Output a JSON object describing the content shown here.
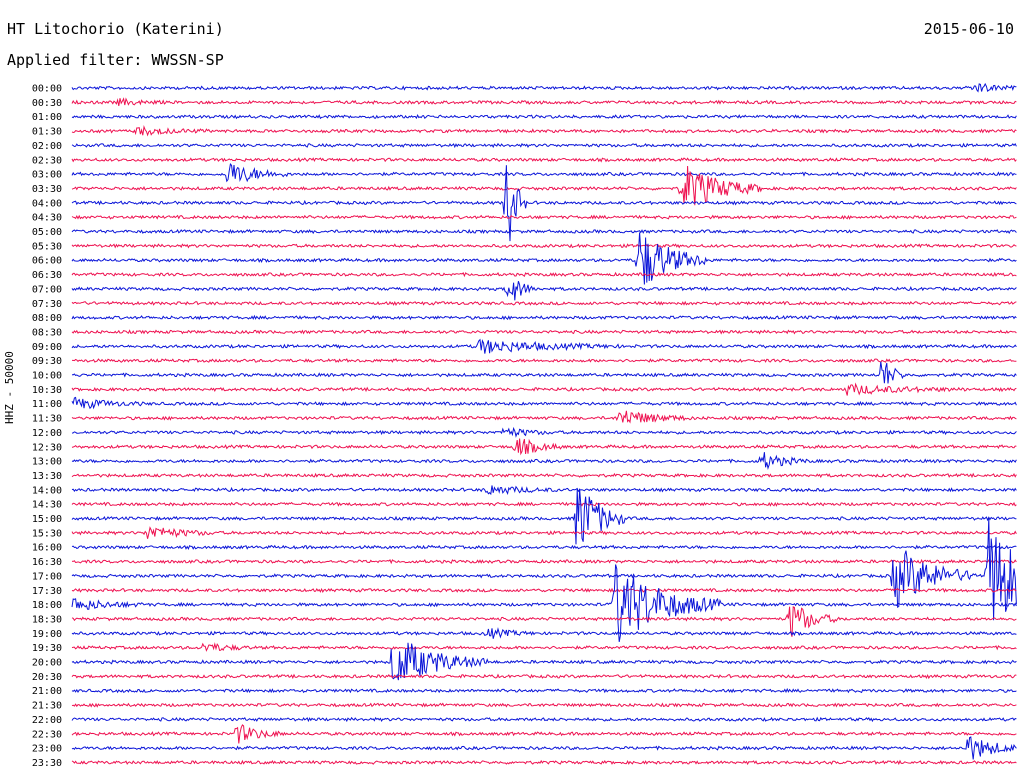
{
  "header": {
    "station": "HT Litochorio (Katerini)",
    "date": "2015-06-10",
    "filter": "Applied filter: WWSSN-SP"
  },
  "chart_data": {
    "type": "line",
    "subtype": "helicorder",
    "ylabel": "HHZ - 50000",
    "colors": [
      "#0a14d8",
      "#ee1150"
    ],
    "rows": [
      "00:00",
      "00:30",
      "01:00",
      "01:30",
      "02:00",
      "02:30",
      "03:00",
      "03:30",
      "04:00",
      "04:30",
      "05:00",
      "05:30",
      "06:00",
      "06:30",
      "07:00",
      "07:30",
      "08:00",
      "08:30",
      "09:00",
      "09:30",
      "10:00",
      "10:30",
      "11:00",
      "11:30",
      "12:00",
      "12:30",
      "13:00",
      "13:30",
      "14:00",
      "14:30",
      "15:00",
      "15:30",
      "16:00",
      "16:30",
      "17:00",
      "17:30",
      "18:00",
      "18:30",
      "19:00",
      "19:30",
      "20:00",
      "20:30",
      "21:00",
      "21:30",
      "22:00",
      "22:30",
      "23:00",
      "23:30"
    ],
    "events": [
      {
        "row": 0,
        "pos": 0.955,
        "amp": 5,
        "dur": 0.02
      },
      {
        "row": 1,
        "pos": 0.05,
        "amp": 3,
        "dur": 0.02
      },
      {
        "row": 3,
        "pos": 0.07,
        "amp": 4,
        "dur": 0.03
      },
      {
        "row": 6,
        "pos": 0.165,
        "amp": 13,
        "dur": 0.025
      },
      {
        "row": 7,
        "pos": 0.646,
        "amp": 26,
        "dur": 0.035
      },
      {
        "row": 8,
        "pos": 0.46,
        "amp": 58,
        "dur": 0.008
      },
      {
        "row": 12,
        "pos": 0.6,
        "amp": 34,
        "dur": 0.03
      },
      {
        "row": 14,
        "pos": 0.462,
        "amp": 18,
        "dur": 0.012
      },
      {
        "row": 18,
        "pos": 0.43,
        "amp": 7,
        "dur": 0.06
      },
      {
        "row": 20,
        "pos": 0.857,
        "amp": 20,
        "dur": 0.01
      },
      {
        "row": 21,
        "pos": 0.82,
        "amp": 5,
        "dur": 0.05
      },
      {
        "row": 22,
        "pos": 0.0,
        "amp": 6,
        "dur": 0.03
      },
      {
        "row": 23,
        "pos": 0.58,
        "amp": 9,
        "dur": 0.03
      },
      {
        "row": 24,
        "pos": 0.458,
        "amp": 5,
        "dur": 0.02
      },
      {
        "row": 25,
        "pos": 0.47,
        "amp": 10,
        "dur": 0.02
      },
      {
        "row": 26,
        "pos": 0.73,
        "amp": 9,
        "dur": 0.02
      },
      {
        "row": 28,
        "pos": 0.44,
        "amp": 5,
        "dur": 0.03
      },
      {
        "row": 30,
        "pos": 0.535,
        "amp": 44,
        "dur": 0.02
      },
      {
        "row": 31,
        "pos": 0.08,
        "amp": 7,
        "dur": 0.03
      },
      {
        "row": 34,
        "pos": 0.87,
        "amp": 34,
        "dur": 0.035
      },
      {
        "row": 34,
        "pos": 0.97,
        "amp": 58,
        "dur": 0.04
      },
      {
        "row": 36,
        "pos": 0.575,
        "amp": 44,
        "dur": 0.045
      },
      {
        "row": 36,
        "pos": 0.0,
        "amp": 7,
        "dur": 0.03
      },
      {
        "row": 37,
        "pos": 0.76,
        "amp": 20,
        "dur": 0.02
      },
      {
        "row": 38,
        "pos": 0.44,
        "amp": 5,
        "dur": 0.02
      },
      {
        "row": 39,
        "pos": 0.14,
        "amp": 5,
        "dur": 0.02
      },
      {
        "row": 40,
        "pos": 0.34,
        "amp": 28,
        "dur": 0.04
      },
      {
        "row": 45,
        "pos": 0.175,
        "amp": 10,
        "dur": 0.02
      },
      {
        "row": 46,
        "pos": 0.947,
        "amp": 14,
        "dur": 0.025
      }
    ]
  }
}
